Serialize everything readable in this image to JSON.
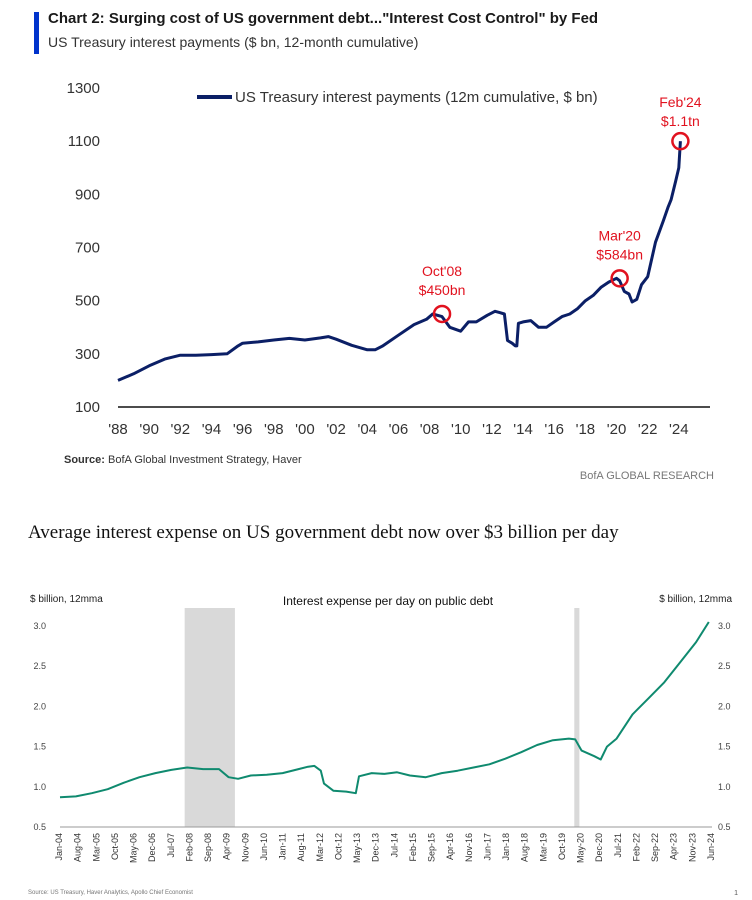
{
  "colors": {
    "navy": "#0b1f66",
    "accent_blue": "#0033cc",
    "red": "#e1121f",
    "green": "#0f8a6f",
    "recession": "#d9d9d9"
  },
  "chart_data": [
    {
      "type": "line",
      "title": "Chart 2: Surging cost of US government debt...\"Interest Cost Control\" by Fed",
      "subtitle": "US Treasury interest payments ($ bn, 12-month cumulative)",
      "legend": "US Treasury interest payments (12m cumulative, $ bn)",
      "legend_position": "top-center",
      "xlabel": "",
      "ylabel": "",
      "xlim": [
        1988,
        2026
      ],
      "ylim": [
        100,
        1300
      ],
      "yticks": [
        "100",
        "300",
        "500",
        "700",
        "900",
        "1100",
        "1300"
      ],
      "xticks": [
        "'88",
        "'90",
        "'92",
        "'94",
        "'96",
        "'98",
        "'00",
        "'02",
        "'04",
        "'06",
        "'08",
        "'10",
        "'12",
        "'14",
        "'16",
        "'18",
        "'20",
        "'22",
        "'24"
      ],
      "grid": false,
      "series": [
        {
          "name": "US Treasury interest payments (12m cumulative, $ bn)",
          "x": [
            1988.0,
            1989.0,
            1990.0,
            1991.0,
            1992.0,
            1993.0,
            1994.0,
            1995.0,
            1995.7,
            1996.0,
            1997.0,
            1998.0,
            1999.0,
            2000.0,
            2001.0,
            2001.5,
            2002.0,
            2003.0,
            2004.0,
            2004.5,
            2005.0,
            2006.0,
            2007.0,
            2007.8,
            2008.2,
            2008.8,
            2009.3,
            2010.0,
            2010.5,
            2011.0,
            2011.7,
            2012.2,
            2012.5,
            2012.8,
            2013.0,
            2013.3,
            2013.5,
            2013.6,
            2013.7,
            2014.0,
            2014.5,
            2015.0,
            2015.5,
            2016.0,
            2016.5,
            2017.0,
            2017.5,
            2018.0,
            2018.5,
            2019.0,
            2019.5,
            2020.0,
            2020.2,
            2020.5,
            2020.8,
            2021.0,
            2021.3,
            2021.6,
            2022.0,
            2022.5,
            2023.0,
            2023.3,
            2023.5,
            2023.8,
            2024.0,
            2024.1
          ],
          "y": [
            200,
            225,
            255,
            280,
            295,
            295,
            297,
            300,
            330,
            340,
            345,
            352,
            358,
            352,
            360,
            365,
            355,
            332,
            315,
            315,
            330,
            370,
            410,
            430,
            450,
            440,
            400,
            385,
            420,
            420,
            445,
            460,
            455,
            450,
            350,
            340,
            330,
            330,
            415,
            420,
            425,
            400,
            400,
            420,
            440,
            450,
            470,
            500,
            520,
            550,
            570,
            584,
            575,
            535,
            525,
            495,
            505,
            560,
            590,
            720,
            800,
            850,
            880,
            950,
            1000,
            1100
          ]
        }
      ],
      "annotations": [
        {
          "label": "Oct'08",
          "value_label": "$450bn",
          "x": 2008.8,
          "y": 450
        },
        {
          "label": "Mar'20",
          "value_label": "$584bn",
          "x": 2020.2,
          "y": 584
        },
        {
          "label": "Feb'24",
          "value_label": "$1.1tn",
          "x": 2024.1,
          "y": 1100
        }
      ],
      "source_label": "Source:",
      "source": "BofA Global Investment Strategy, Haver",
      "brand": "BofA GLOBAL RESEARCH"
    },
    {
      "type": "line",
      "title": "Interest expense per day on public debt",
      "unit_left": "$ billion, 12mma",
      "unit_right": "$ billion, 12mma",
      "xlabel": "",
      "ylabel": "",
      "xlim": [
        2004.0,
        2024.5
      ],
      "ylim": [
        0.5,
        3.0
      ],
      "yticks": [
        "0.5",
        "1.0",
        "1.5",
        "2.0",
        "2.5",
        "3.0"
      ],
      "xtick_labels": [
        "Jan-04",
        "Aug-04",
        "Mar-05",
        "Oct-05",
        "May-06",
        "Dec-06",
        "Jul-07",
        "Feb-08",
        "Sep-08",
        "Apr-09",
        "Nov-09",
        "Jun-10",
        "Jan-11",
        "Aug-11",
        "Mar-12",
        "Oct-12",
        "May-13",
        "Dec-13",
        "Jul-14",
        "Feb-15",
        "Sep-15",
        "Apr-16",
        "Nov-16",
        "Jun-17",
        "Jan-18",
        "Aug-18",
        "Mar-19",
        "Oct-19",
        "May-20",
        "Dec-20",
        "Jul-21",
        "Feb-22",
        "Sep-22",
        "Apr-23",
        "Nov-23",
        "Jun-24"
      ],
      "grid": false,
      "recessions": [
        [
          2007.92,
          2009.5
        ],
        [
          2020.17,
          2020.33
        ]
      ],
      "series": [
        {
          "name": "",
          "x": [
            2004.0,
            2004.5,
            2005.0,
            2005.5,
            2006.0,
            2006.5,
            2007.0,
            2007.5,
            2008.0,
            2008.5,
            2009.0,
            2009.3,
            2009.6,
            2010.0,
            2010.5,
            2011.0,
            2011.5,
            2011.8,
            2012.0,
            2012.2,
            2012.3,
            2012.6,
            2013.0,
            2013.3,
            2013.4,
            2013.8,
            2014.2,
            2014.6,
            2015.0,
            2015.5,
            2016.0,
            2016.5,
            2017.0,
            2017.5,
            2018.0,
            2018.5,
            2019.0,
            2019.5,
            2020.0,
            2020.2,
            2020.4,
            2020.8,
            2021.0,
            2021.2,
            2021.5,
            2022.0,
            2022.5,
            2023.0,
            2023.5,
            2024.0,
            2024.4
          ],
          "y": [
            0.87,
            0.88,
            0.92,
            0.97,
            1.05,
            1.12,
            1.17,
            1.21,
            1.24,
            1.22,
            1.22,
            1.12,
            1.1,
            1.14,
            1.15,
            1.17,
            1.22,
            1.25,
            1.26,
            1.2,
            1.04,
            0.95,
            0.94,
            0.92,
            1.13,
            1.17,
            1.16,
            1.18,
            1.14,
            1.12,
            1.17,
            1.2,
            1.24,
            1.28,
            1.35,
            1.43,
            1.52,
            1.58,
            1.6,
            1.59,
            1.45,
            1.38,
            1.34,
            1.5,
            1.6,
            1.9,
            2.1,
            2.3,
            2.55,
            2.8,
            3.05
          ]
        }
      ],
      "source": "Source: US Treasury, Haver Analytics, Apollo Chief Economist",
      "page_number": "1"
    }
  ],
  "caption": "Average interest expense on US government debt now over $3 billion per day"
}
